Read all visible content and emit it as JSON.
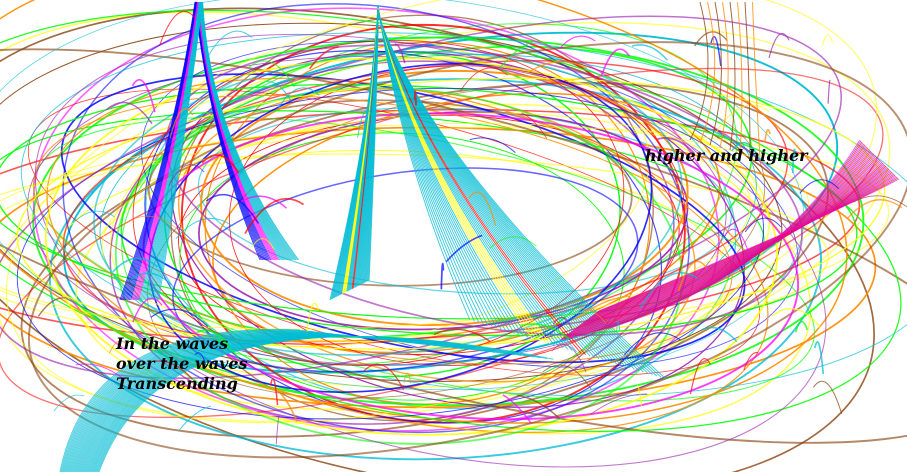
{
  "captions": {
    "top_right": "higher and higher",
    "bottom_left": [
      "In the waves",
      "over the waves",
      "Transcending"
    ]
  },
  "artwork": {
    "subject": "spirograph-swirl",
    "palette": [
      "#00bcd4",
      "#ff00ff",
      "#ffff00",
      "#00ff00",
      "#ff0000",
      "#0000ff",
      "#ff8c00",
      "#8b4513",
      "#9c27b0"
    ]
  }
}
